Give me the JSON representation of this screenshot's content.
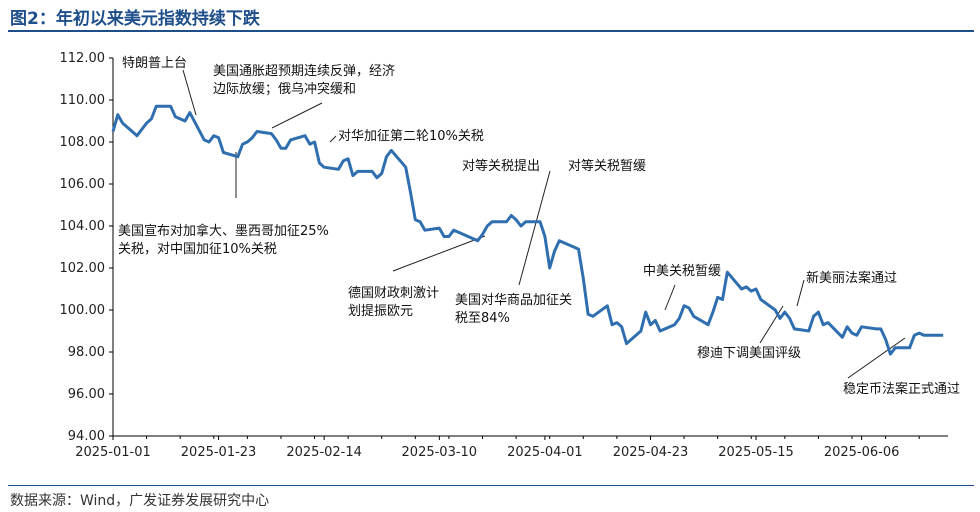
{
  "figure": {
    "title": "图2：年初以来美元指数持续下跌",
    "source": "数据来源：Wind，广发证券发展研究中心"
  },
  "colors": {
    "line": "#2f6fb0",
    "title": "#1f4f8b",
    "axis": "#000000"
  },
  "chart_data": {
    "type": "line",
    "title": "",
    "xlabel": "",
    "ylabel": "",
    "ylim": [
      94,
      112
    ],
    "yticks": [
      "94.00",
      "96.00",
      "98.00",
      "100.00",
      "102.00",
      "104.00",
      "106.00",
      "108.00",
      "110.00",
      "112.00"
    ],
    "xticks": [
      "2025-01-01",
      "2025-01-23",
      "2025-02-14",
      "2025-03-10",
      "2025-04-01",
      "2025-04-23",
      "2025-05-15",
      "2025-06-06"
    ],
    "grid": false,
    "legend": "none",
    "series": [
      {
        "values": [
          [
            "2025-01-01",
            108.5
          ],
          [
            "2025-01-02",
            109.3
          ],
          [
            "2025-01-03",
            108.9
          ],
          [
            "2025-01-06",
            108.3
          ],
          [
            "2025-01-07",
            108.6
          ],
          [
            "2025-01-08",
            108.9
          ],
          [
            "2025-01-09",
            109.1
          ],
          [
            "2025-01-10",
            109.7
          ],
          [
            "2025-01-13",
            109.7
          ],
          [
            "2025-01-14",
            109.2
          ],
          [
            "2025-01-15",
            109.1
          ],
          [
            "2025-01-16",
            109.0
          ],
          [
            "2025-01-17",
            109.4
          ],
          [
            "2025-01-20",
            108.1
          ],
          [
            "2025-01-21",
            108.0
          ],
          [
            "2025-01-22",
            108.3
          ],
          [
            "2025-01-23",
            108.2
          ],
          [
            "2025-01-24",
            107.5
          ],
          [
            "2025-01-27",
            107.3
          ],
          [
            "2025-01-28",
            107.9
          ],
          [
            "2025-01-29",
            108.0
          ],
          [
            "2025-01-30",
            108.2
          ],
          [
            "2025-01-31",
            108.5
          ],
          [
            "2025-02-03",
            108.4
          ],
          [
            "2025-02-04",
            108.1
          ],
          [
            "2025-02-05",
            107.7
          ],
          [
            "2025-02-06",
            107.7
          ],
          [
            "2025-02-07",
            108.1
          ],
          [
            "2025-02-10",
            108.3
          ],
          [
            "2025-02-11",
            107.9
          ],
          [
            "2025-02-12",
            108.0
          ],
          [
            "2025-02-13",
            107.0
          ],
          [
            "2025-02-14",
            106.8
          ],
          [
            "2025-02-17",
            106.7
          ],
          [
            "2025-02-18",
            107.1
          ],
          [
            "2025-02-19",
            107.2
          ],
          [
            "2025-02-20",
            106.4
          ],
          [
            "2025-02-21",
            106.6
          ],
          [
            "2025-02-24",
            106.6
          ],
          [
            "2025-02-25",
            106.3
          ],
          [
            "2025-02-26",
            106.5
          ],
          [
            "2025-02-27",
            107.3
          ],
          [
            "2025-02-28",
            107.6
          ],
          [
            "2025-03-03",
            106.8
          ],
          [
            "2025-03-04",
            105.6
          ],
          [
            "2025-03-05",
            104.3
          ],
          [
            "2025-03-06",
            104.2
          ],
          [
            "2025-03-07",
            103.8
          ],
          [
            "2025-03-10",
            103.9
          ],
          [
            "2025-03-11",
            103.5
          ],
          [
            "2025-03-12",
            103.5
          ],
          [
            "2025-03-13",
            103.8
          ],
          [
            "2025-03-14",
            103.7
          ],
          [
            "2025-03-17",
            103.4
          ],
          [
            "2025-03-18",
            103.3
          ],
          [
            "2025-03-19",
            103.6
          ],
          [
            "2025-03-20",
            104.0
          ],
          [
            "2025-03-21",
            104.2
          ],
          [
            "2025-03-24",
            104.2
          ],
          [
            "2025-03-25",
            104.5
          ],
          [
            "2025-03-26",
            104.3
          ],
          [
            "2025-03-27",
            104.0
          ],
          [
            "2025-03-28",
            104.2
          ],
          [
            "2025-03-31",
            104.2
          ],
          [
            "2025-04-01",
            103.5
          ],
          [
            "2025-04-02",
            102.0
          ],
          [
            "2025-04-03",
            102.8
          ],
          [
            "2025-04-04",
            103.3
          ],
          [
            "2025-04-07",
            103.0
          ],
          [
            "2025-04-08",
            102.9
          ],
          [
            "2025-04-09",
            101.5
          ],
          [
            "2025-04-10",
            99.8
          ],
          [
            "2025-04-11",
            99.7
          ],
          [
            "2025-04-14",
            100.2
          ],
          [
            "2025-04-15",
            99.3
          ],
          [
            "2025-04-16",
            99.4
          ],
          [
            "2025-04-17",
            99.2
          ],
          [
            "2025-04-18",
            98.4
          ],
          [
            "2025-04-21",
            99.0
          ],
          [
            "2025-04-22",
            99.9
          ],
          [
            "2025-04-23",
            99.3
          ],
          [
            "2025-04-24",
            99.5
          ],
          [
            "2025-04-25",
            99.0
          ],
          [
            "2025-04-28",
            99.3
          ],
          [
            "2025-04-29",
            99.6
          ],
          [
            "2025-04-30",
            100.2
          ],
          [
            "2025-05-01",
            100.1
          ],
          [
            "2025-05-02",
            99.7
          ],
          [
            "2025-05-05",
            99.3
          ],
          [
            "2025-05-06",
            99.9
          ],
          [
            "2025-05-07",
            100.6
          ],
          [
            "2025-05-08",
            100.5
          ],
          [
            "2025-05-09",
            101.8
          ],
          [
            "2025-05-12",
            101.0
          ],
          [
            "2025-05-13",
            101.1
          ],
          [
            "2025-05-14",
            100.9
          ],
          [
            "2025-05-15",
            101.0
          ],
          [
            "2025-05-16",
            100.5
          ],
          [
            "2025-05-19",
            100.0
          ],
          [
            "2025-05-20",
            99.6
          ],
          [
            "2025-05-21",
            99.9
          ],
          [
            "2025-05-22",
            99.6
          ],
          [
            "2025-05-23",
            99.1
          ],
          [
            "2025-05-26",
            99.0
          ],
          [
            "2025-05-27",
            99.7
          ],
          [
            "2025-05-28",
            99.9
          ],
          [
            "2025-05-29",
            99.3
          ],
          [
            "2025-05-30",
            99.4
          ],
          [
            "2025-06-02",
            98.7
          ],
          [
            "2025-06-03",
            99.2
          ],
          [
            "2025-06-04",
            98.9
          ],
          [
            "2025-06-05",
            98.8
          ],
          [
            "2025-06-06",
            99.2
          ],
          [
            "2025-06-09",
            99.1
          ],
          [
            "2025-06-10",
            99.1
          ],
          [
            "2025-06-11",
            98.6
          ],
          [
            "2025-06-12",
            97.9
          ],
          [
            "2025-06-13",
            98.2
          ],
          [
            "2025-06-16",
            98.2
          ],
          [
            "2025-06-17",
            98.8
          ],
          [
            "2025-06-18",
            98.9
          ],
          [
            "2025-06-19",
            98.8
          ],
          [
            "2025-06-20",
            98.8
          ],
          [
            "2025-06-23",
            98.8
          ]
        ]
      }
    ],
    "annotations": [
      {
        "lines": [
          "特朗普上台"
        ],
        "date": "2025-01-17"
      },
      {
        "lines": [
          "美国通胀超预期连续反弹，经济",
          "边际放缓；俄乌冲突缓和"
        ],
        "date": "2025-01-31"
      },
      {
        "lines": [
          "美国宣布对加拿大、墨西哥加征25%",
          "关税，对中国加征10%关税"
        ],
        "date": "2025-01-24"
      },
      {
        "lines": [
          "对华加征第二轮10%关税"
        ],
        "date": "2025-02-28"
      },
      {
        "lines": [
          "德国财政刺激计",
          "划提振欧元"
        ],
        "date": "2025-03-18"
      },
      {
        "lines": [
          "对等关税提出"
        ],
        "date": "2025-04-02"
      },
      {
        "lines": [
          "对等关税暂缓"
        ],
        "date": "2025-04-09"
      },
      {
        "lines": [
          "美国对华商品加征关",
          "税至84%"
        ],
        "date": "2025-04-08"
      },
      {
        "lines": [
          "中美关税暂缓"
        ],
        "date": "2025-05-12"
      },
      {
        "lines": [
          "新美丽法案通过"
        ],
        "date": "2025-05-22"
      },
      {
        "lines": [
          "穆迪下调美国评级"
        ],
        "date": "2025-05-19"
      },
      {
        "lines": [
          "稳定币法案正式通过"
        ],
        "date": "2025-06-12"
      }
    ]
  }
}
